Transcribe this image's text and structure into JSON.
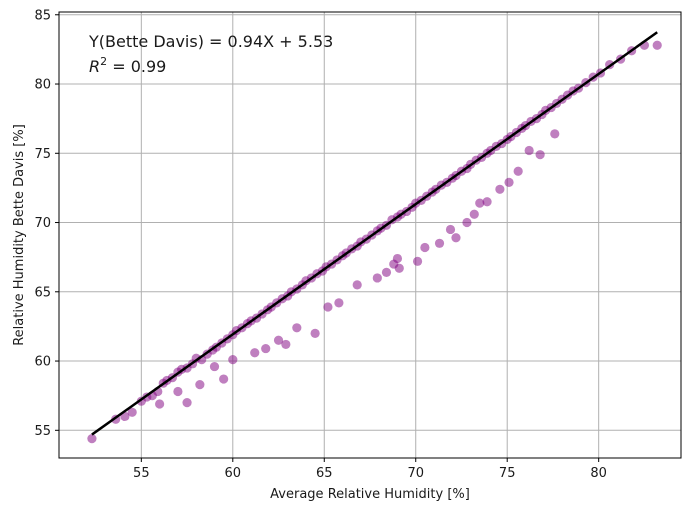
{
  "chart_data": {
    "type": "scatter",
    "xlabel": "Average Relative Humidity [%]",
    "ylabel": "Relative Humidity Bette Davis [%]",
    "xlim": [
      50.5,
      84.5
    ],
    "ylim": [
      53,
      85.2
    ],
    "xticks": [
      55,
      60,
      65,
      70,
      75,
      80
    ],
    "yticks": [
      55,
      60,
      65,
      70,
      75,
      80,
      85
    ],
    "grid": true,
    "annotations": {
      "equation": "Y(Bette Davis) = 0.94X + 5.53",
      "r2_value": "0.99"
    },
    "fit_line": {
      "slope": 0.94,
      "intercept": 5.53,
      "x_range": [
        52.3,
        83.2
      ],
      "color": "#000000"
    },
    "series": [
      {
        "color": "#800080",
        "x": [
          52.3,
          53.6,
          54.1,
          54.5,
          55.0,
          55.3,
          55.6,
          55.9,
          56.2,
          56.4,
          56.7,
          57.0,
          57.2,
          57.5,
          57.8,
          58.0,
          58.3,
          58.6,
          58.9,
          59.1,
          59.4,
          59.7,
          60.0,
          60.2,
          60.5,
          60.8,
          61.0,
          61.3,
          61.6,
          61.9,
          62.1,
          62.4,
          62.7,
          63.0,
          63.2,
          63.5,
          63.8,
          64.0,
          64.3,
          64.6,
          64.9,
          65.1,
          65.4,
          65.7,
          66.0,
          66.2,
          66.5,
          66.8,
          67.0,
          67.3,
          67.6,
          67.9,
          68.1,
          68.4,
          68.7,
          69.0,
          69.2,
          69.5,
          69.8,
          70.0,
          70.3,
          70.6,
          70.9,
          71.1,
          71.4,
          71.7,
          72.0,
          72.2,
          72.5,
          72.8,
          73.0,
          73.3,
          73.6,
          73.9,
          74.1,
          74.4,
          74.7,
          75.0,
          75.2,
          75.5,
          75.8,
          76.0,
          76.3,
          76.6,
          76.9,
          77.1,
          77.4,
          77.7,
          78.0,
          78.3,
          78.6,
          78.9,
          79.3,
          79.7,
          80.1,
          80.6,
          81.2,
          81.8,
          82.5,
          83.2,
          56.0,
          57.5,
          59.5,
          60.0,
          61.8,
          62.9,
          64.5,
          66.8,
          68.8,
          69.1,
          69.0,
          70.1,
          71.3,
          72.2,
          72.8,
          73.9,
          75.1,
          75.6,
          76.2,
          77.6,
          58.2,
          59.0,
          63.5,
          65.8,
          67.9,
          70.5,
          73.2,
          74.6,
          57.0,
          61.2,
          62.5,
          65.2,
          68.4,
          71.9,
          73.5,
          76.8
        ],
        "y": [
          54.4,
          55.8,
          56.0,
          56.3,
          57.1,
          57.4,
          57.5,
          57.8,
          58.4,
          58.6,
          58.8,
          59.2,
          59.4,
          59.5,
          59.8,
          60.2,
          60.1,
          60.5,
          60.8,
          61.0,
          61.3,
          61.6,
          61.9,
          62.2,
          62.4,
          62.7,
          62.9,
          63.1,
          63.4,
          63.7,
          63.9,
          64.2,
          64.5,
          64.7,
          65.0,
          65.2,
          65.5,
          65.8,
          66.0,
          66.3,
          66.5,
          66.8,
          67.0,
          67.3,
          67.6,
          67.8,
          68.1,
          68.3,
          68.6,
          68.8,
          69.1,
          69.4,
          69.6,
          69.8,
          70.2,
          70.4,
          70.6,
          70.8,
          71.1,
          71.4,
          71.6,
          71.9,
          72.2,
          72.4,
          72.7,
          72.9,
          73.2,
          73.4,
          73.7,
          73.9,
          74.2,
          74.5,
          74.7,
          75.0,
          75.2,
          75.5,
          75.7,
          76.0,
          76.2,
          76.5,
          76.8,
          77.0,
          77.3,
          77.5,
          77.8,
          78.1,
          78.3,
          78.6,
          78.9,
          79.2,
          79.5,
          79.7,
          80.1,
          80.5,
          80.8,
          81.4,
          81.8,
          82.4,
          82.8,
          82.8,
          56.9,
          57.0,
          58.7,
          60.1,
          60.9,
          61.2,
          62.0,
          65.5,
          67.0,
          66.7,
          67.4,
          67.2,
          68.5,
          68.9,
          70.0,
          71.5,
          72.9,
          73.7,
          75.2,
          76.4,
          58.3,
          59.6,
          62.4,
          64.2,
          66.0,
          68.2,
          70.6,
          72.4,
          57.8,
          60.6,
          61.5,
          63.9,
          66.4,
          69.5,
          71.4,
          74.9
        ]
      }
    ]
  }
}
